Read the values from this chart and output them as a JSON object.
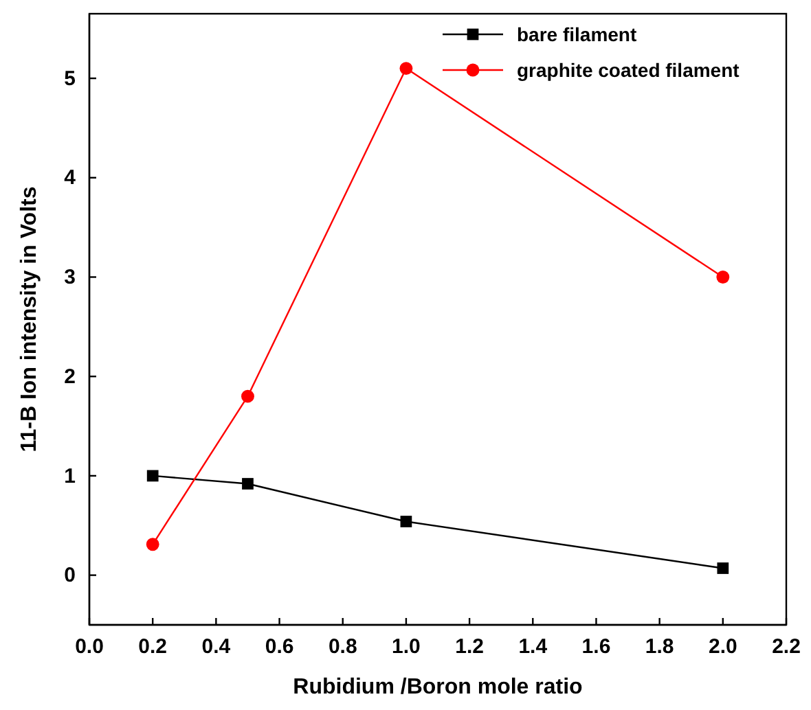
{
  "chart_data": {
    "type": "line",
    "xlabel": "Rubidium /Boron mole ratio",
    "ylabel": "11-B Ion intensity in Volts",
    "x": [
      0.2,
      0.5,
      1.0,
      2.0
    ],
    "series": [
      {
        "name": "bare filament",
        "color": "#000000",
        "marker": "square",
        "values": [
          1.0,
          0.92,
          0.54,
          0.07
        ]
      },
      {
        "name": "graphite coated filament",
        "color": "#ff0000",
        "marker": "circle",
        "values": [
          0.31,
          1.8,
          5.1,
          3.0
        ]
      }
    ],
    "xlim": [
      0,
      2.2
    ],
    "xticks": [
      {
        "value": 0,
        "label": "0.0"
      },
      {
        "value": 0.2,
        "label": "0.2"
      },
      {
        "value": 0.4,
        "label": "0.4"
      },
      {
        "value": 0.6,
        "label": "0.6"
      },
      {
        "value": 0.8,
        "label": "0.8"
      },
      {
        "value": 1.0,
        "label": "1.0"
      },
      {
        "value": 1.2,
        "label": "1.2"
      },
      {
        "value": 1.4,
        "label": "1.4"
      },
      {
        "value": 1.6,
        "label": "1.6"
      },
      {
        "value": 1.8,
        "label": "1.8"
      },
      {
        "value": 2.0,
        "label": "2.0"
      },
      {
        "value": 2.2,
        "label": "2.2"
      }
    ],
    "ylim": [
      -0.5,
      5.65
    ],
    "yticks": [
      0,
      1,
      2,
      3,
      4,
      5
    ],
    "legend": "top right",
    "grid": false,
    "line_style": "solid"
  }
}
